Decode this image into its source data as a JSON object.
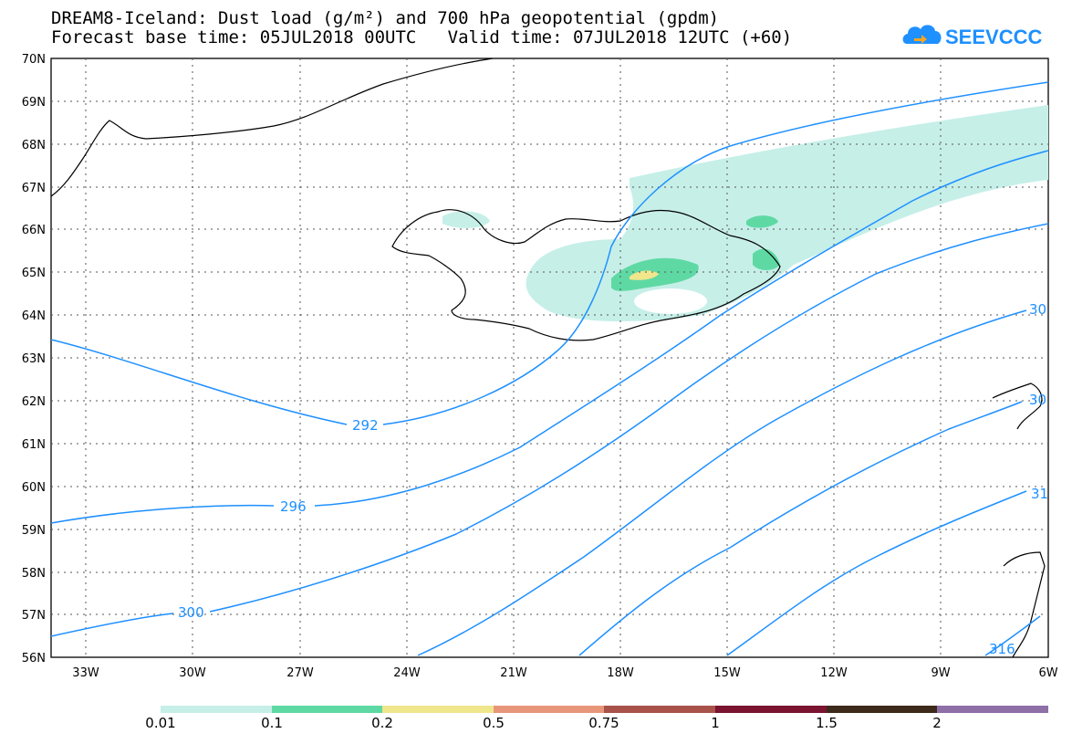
{
  "header": {
    "title_line1": "DREAM8-Iceland: Dust load (g/m²) and 700 hPa geopotential (gpdm)",
    "title_line2": "Forecast base time: 05JUL2018 00UTC   Valid time: 07JUL2018 12UTC (+60)"
  },
  "logo": {
    "text": "SEEVCCC",
    "color": "#1e90ff"
  },
  "axes": {
    "lat_labels": [
      "70N",
      "69N",
      "68N",
      "67N",
      "66N",
      "65N",
      "64N",
      "63N",
      "62N",
      "61N",
      "60N",
      "59N",
      "58N",
      "57N",
      "56N"
    ],
    "lon_labels": [
      "33W",
      "30W",
      "27W",
      "24W",
      "21W",
      "18W",
      "15W",
      "12W",
      "9W",
      "6W"
    ]
  },
  "contour_labels": [
    "292",
    "296",
    "300",
    "30",
    "30",
    "31",
    "316"
  ],
  "legend": {
    "values": [
      "0.01",
      "0.1",
      "0.2",
      "0.5",
      "0.75",
      "1",
      "1.5",
      "2"
    ],
    "colors": [
      "#c6efe8",
      "#5fd9a4",
      "#f0e68c",
      "#e8967a",
      "#a8524a",
      "#7a1430",
      "#3d2a1a",
      "#8e6fa8"
    ]
  },
  "colors": {
    "contour": "#1e90ff",
    "coast": "#000000",
    "dust_low": "#c6efe8",
    "dust_mid": "#5fd9a4",
    "dust_high": "#f0e68c"
  }
}
